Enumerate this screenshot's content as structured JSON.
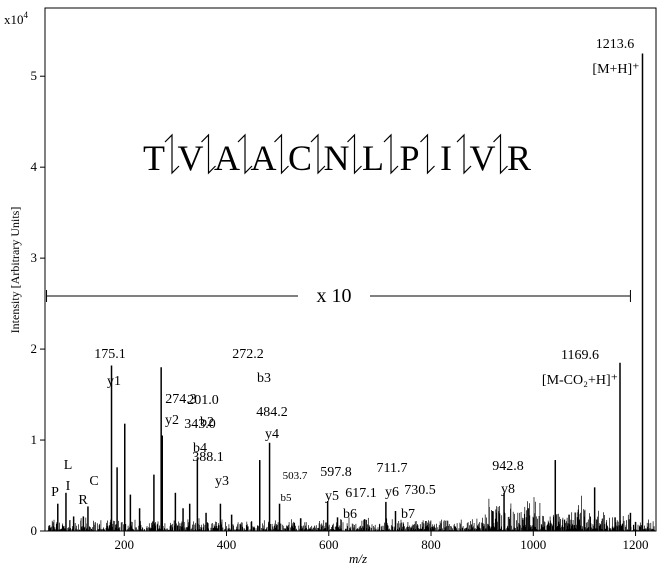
{
  "chart_data": {
    "type": "line",
    "title": "",
    "xlabel": "m/z",
    "ylabel": "Intensity [Arbitrary Units]",
    "y_multiplier": "x10",
    "y_multiplier_exp": "4",
    "xlim": [
      45,
      1240
    ],
    "ylim": [
      0,
      5.75
    ],
    "x_ticks": [
      200,
      400,
      600,
      800,
      1000,
      1200
    ],
    "y_ticks": [
      0,
      1,
      2,
      3,
      4,
      5
    ],
    "grid": false,
    "zoom_label": "x 10",
    "zoom_range": [
      48,
      1190
    ],
    "sequence": [
      "T",
      "V",
      "A",
      "A",
      "C",
      "N",
      "L",
      "P",
      "I",
      "V",
      "R"
    ],
    "immonium_labels": [
      "P",
      "L",
      "I",
      "R",
      "C"
    ],
    "peaks": [
      {
        "mz": 70,
        "y": 0.3
      },
      {
        "mz": 86,
        "y": 0.42
      },
      {
        "mz": 101,
        "y": 0.16
      },
      {
        "mz": 120,
        "y": 0.16
      },
      {
        "mz": 129,
        "y": 0.27
      },
      {
        "mz": 175.1,
        "y": 1.82,
        "label": "175.1",
        "ion": "y1"
      },
      {
        "mz": 186,
        "y": 0.7
      },
      {
        "mz": 201.0,
        "y": 1.18,
        "label": "201.0",
        "ion": "b2"
      },
      {
        "mz": 212,
        "y": 0.4
      },
      {
        "mz": 230,
        "y": 0.25
      },
      {
        "mz": 258,
        "y": 0.62
      },
      {
        "mz": 272.2,
        "y": 1.8,
        "label": "272.2",
        "ion": "b3"
      },
      {
        "mz": 274.3,
        "y": 1.05,
        "label": "274.3",
        "ion": "y2"
      },
      {
        "mz": 300,
        "y": 0.42
      },
      {
        "mz": 315,
        "y": 0.25
      },
      {
        "mz": 328,
        "y": 0.3
      },
      {
        "mz": 343.0,
        "y": 0.8,
        "label": "343.0",
        "ion": "b4"
      },
      {
        "mz": 360,
        "y": 0.2
      },
      {
        "mz": 388.1,
        "y": 0.3,
        "label": "388.1",
        "ion": "y3"
      },
      {
        "mz": 410,
        "y": 0.18
      },
      {
        "mz": 465,
        "y": 0.78
      },
      {
        "mz": 484.2,
        "y": 0.97,
        "label": "484.2",
        "ion": "y4"
      },
      {
        "mz": 503.7,
        "y": 0.3,
        "label": "503.7",
        "ion": "b5"
      },
      {
        "mz": 545,
        "y": 0.14
      },
      {
        "mz": 597.8,
        "y": 0.33,
        "label": "597.8",
        "ion": "y5"
      },
      {
        "mz": 617.1,
        "y": 0.15,
        "label": "617.1",
        "ion": "b6"
      },
      {
        "mz": 670,
        "y": 0.13
      },
      {
        "mz": 711.7,
        "y": 0.32,
        "label": "711.7",
        "ion": "y6"
      },
      {
        "mz": 730.5,
        "y": 0.22,
        "label": "730.5",
        "ion": "b7"
      },
      {
        "mz": 790,
        "y": 0.11
      },
      {
        "mz": 920,
        "y": 0.22
      },
      {
        "mz": 942.8,
        "y": 0.42,
        "label": "942.8",
        "ion": "y8"
      },
      {
        "mz": 990,
        "y": 0.25
      },
      {
        "mz": 1043,
        "y": 0.78
      },
      {
        "mz": 1070,
        "y": 0.18
      },
      {
        "mz": 1120,
        "y": 0.48
      },
      {
        "mz": 1160,
        "y": 0.15
      },
      {
        "mz": 1169.6,
        "y": 1.85,
        "label": "1169.6",
        "ion": "[M-CO₂+H]⁺"
      },
      {
        "mz": 1190,
        "y": 0.2
      },
      {
        "mz": 1200,
        "y": 0.1
      },
      {
        "mz": 1213.6,
        "y": 5.25,
        "label": "1213.6",
        "ion": "[M+H]⁺"
      }
    ]
  }
}
